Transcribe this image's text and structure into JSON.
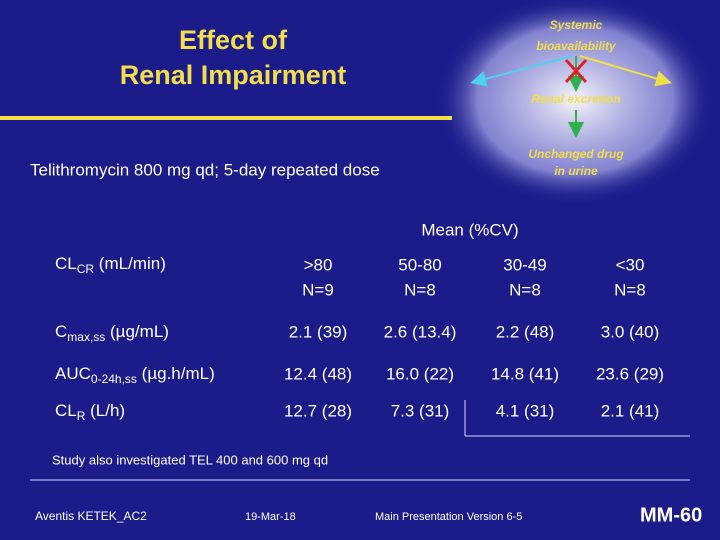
{
  "slide": {
    "title": [
      "Effect of",
      "Renal Impairment"
    ],
    "diagram": {
      "top": [
        "Systemic",
        "bioavailability"
      ],
      "middle": "Renal excretion",
      "bottom": [
        "Unchanged drug",
        "in urine"
      ]
    },
    "subtitle": "Telithromycin 800 mg qd; 5-day repeated dose",
    "table": {
      "caption": "Mean (%CV)",
      "header_label": {
        "main": "CL",
        "sub": "CR",
        "rest": " (mL/min)"
      },
      "columns": [
        [
          ">80",
          "N=9"
        ],
        [
          "50-80",
          "N=8"
        ],
        [
          "30-49",
          "N=8"
        ],
        [
          "<30",
          "N=8"
        ]
      ],
      "rows": [
        {
          "label": {
            "main": "C",
            "sub": "max,ss",
            "rest": " (µg/mL)"
          },
          "cells": [
            "2.1 (39)",
            "2.6 (13.4)",
            "2.2 (48)",
            "3.0 (40)"
          ]
        },
        {
          "label": {
            "main": "AUC",
            "sub": "0-24h,ss",
            "rest": " (µg.h/mL)"
          },
          "cells": [
            "12.4 (48)",
            "16.0 (22)",
            "14.8 (41)",
            "23.6 (29)"
          ]
        },
        {
          "label": {
            "main": "CL",
            "sub": "R",
            "rest": " (L/h)"
          },
          "cells": [
            "12.7 (28)",
            "7.3 (31)",
            "4.1 (31)",
            "2.1 (41)"
          ]
        }
      ]
    },
    "footnote": "Study also investigated TEL 400 and 600 mg qd",
    "footer": {
      "left": "Aventis KETEK_AC2",
      "date": "19-Mar-18",
      "center": "Main Presentation Version 6-5",
      "page": "MM-60"
    }
  }
}
